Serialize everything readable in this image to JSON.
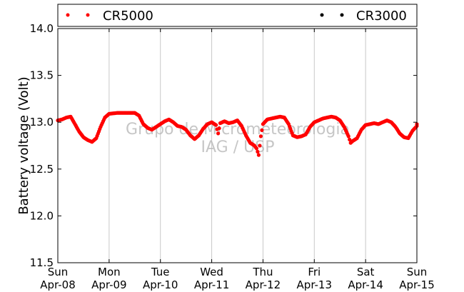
{
  "chart_data": {
    "type": "scatter",
    "ylabel": "Battery voltage (Volt)",
    "xlabel": "",
    "ylim": [
      11.5,
      14.0
    ],
    "xlim": [
      "2018-04-08",
      "2018-04-15"
    ],
    "yticks": [
      "11.5",
      "12.0",
      "12.5",
      "13.0",
      "13.5",
      "14.0"
    ],
    "xticks": [
      {
        "day": "Sun",
        "date": "Apr-08"
      },
      {
        "day": "Mon",
        "date": "Apr-09"
      },
      {
        "day": "Tue",
        "date": "Apr-10"
      },
      {
        "day": "Wed",
        "date": "Apr-11"
      },
      {
        "day": "Thu",
        "date": "Apr-12"
      },
      {
        "day": "Fri",
        "date": "Apr-13"
      },
      {
        "day": "Sat",
        "date": "Apr-14"
      },
      {
        "day": "Sun",
        "date": "Apr-15"
      }
    ],
    "grid": "vertical",
    "legend_position": "top",
    "series": [
      {
        "name": "CR5000",
        "color": "#ff0000",
        "points": [
          [
            "2018-04-08 00:00",
            13.02
          ],
          [
            "2018-04-08 02:00",
            13.03
          ],
          [
            "2018-04-08 04:00",
            13.05
          ],
          [
            "2018-04-08 06:00",
            13.06
          ],
          [
            "2018-04-08 08:00",
            12.98
          ],
          [
            "2018-04-08 10:00",
            12.9
          ],
          [
            "2018-04-08 12:00",
            12.84
          ],
          [
            "2018-04-08 14:00",
            12.81
          ],
          [
            "2018-04-08 16:00",
            12.79
          ],
          [
            "2018-04-08 18:00",
            12.83
          ],
          [
            "2018-04-08 20:00",
            12.95
          ],
          [
            "2018-04-08 22:00",
            13.05
          ],
          [
            "2018-04-09 00:00",
            13.09
          ],
          [
            "2018-04-09 04:00",
            13.1
          ],
          [
            "2018-04-09 08:00",
            13.1
          ],
          [
            "2018-04-09 12:00",
            13.1
          ],
          [
            "2018-04-09 14:00",
            13.07
          ],
          [
            "2018-04-09 16:00",
            12.98
          ],
          [
            "2018-04-09 18:00",
            12.94
          ],
          [
            "2018-04-09 20:00",
            12.92
          ],
          [
            "2018-04-09 22:00",
            12.95
          ],
          [
            "2018-04-10 00:00",
            12.98
          ],
          [
            "2018-04-10 02:00",
            13.01
          ],
          [
            "2018-04-10 04:00",
            13.03
          ],
          [
            "2018-04-10 06:00",
            13.0
          ],
          [
            "2018-04-10 08:00",
            12.96
          ],
          [
            "2018-04-10 10:00",
            12.95
          ],
          [
            "2018-04-10 12:00",
            12.92
          ],
          [
            "2018-04-10 14:00",
            12.86
          ],
          [
            "2018-04-10 16:00",
            12.82
          ],
          [
            "2018-04-10 18:00",
            12.86
          ],
          [
            "2018-04-10 20:00",
            12.93
          ],
          [
            "2018-04-10 22:00",
            12.98
          ],
          [
            "2018-04-11 00:00",
            13.0
          ],
          [
            "2018-04-11 02:00",
            12.97
          ],
          [
            "2018-04-11 03:00",
            12.88
          ],
          [
            "2018-04-11 04:00",
            12.99
          ],
          [
            "2018-04-11 06:00",
            13.01
          ],
          [
            "2018-04-11 08:00",
            12.99
          ],
          [
            "2018-04-11 10:00",
            13.0
          ],
          [
            "2018-04-11 12:00",
            13.02
          ],
          [
            "2018-04-11 14:00",
            12.96
          ],
          [
            "2018-04-11 16:00",
            12.86
          ],
          [
            "2018-04-11 18:00",
            12.78
          ],
          [
            "2018-04-11 20:00",
            12.75
          ],
          [
            "2018-04-11 21:00",
            12.72
          ],
          [
            "2018-04-11 22:00",
            12.65
          ],
          [
            "2018-04-11 23:00",
            12.85
          ],
          [
            "2018-04-12 00:00",
            12.98
          ],
          [
            "2018-04-12 02:00",
            13.03
          ],
          [
            "2018-04-12 04:00",
            13.04
          ],
          [
            "2018-04-12 06:00",
            13.05
          ],
          [
            "2018-04-12 08:00",
            13.06
          ],
          [
            "2018-04-12 10:00",
            13.05
          ],
          [
            "2018-04-12 12:00",
            12.98
          ],
          [
            "2018-04-12 14:00",
            12.86
          ],
          [
            "2018-04-12 16:00",
            12.84
          ],
          [
            "2018-04-12 18:00",
            12.85
          ],
          [
            "2018-04-12 20:00",
            12.87
          ],
          [
            "2018-04-12 22:00",
            12.95
          ],
          [
            "2018-04-13 00:00",
            13.0
          ],
          [
            "2018-04-13 02:00",
            13.02
          ],
          [
            "2018-04-13 04:00",
            13.04
          ],
          [
            "2018-04-13 06:00",
            13.05
          ],
          [
            "2018-04-13 08:00",
            13.06
          ],
          [
            "2018-04-13 10:00",
            13.05
          ],
          [
            "2018-04-13 12:00",
            13.02
          ],
          [
            "2018-04-13 14:00",
            12.95
          ],
          [
            "2018-04-13 16:00",
            12.85
          ],
          [
            "2018-04-13 17:00",
            12.78
          ],
          [
            "2018-04-13 18:00",
            12.8
          ],
          [
            "2018-04-13 20:00",
            12.83
          ],
          [
            "2018-04-13 22:00",
            12.92
          ],
          [
            "2018-04-14 00:00",
            12.97
          ],
          [
            "2018-04-14 02:00",
            12.98
          ],
          [
            "2018-04-14 04:00",
            12.99
          ],
          [
            "2018-04-14 06:00",
            12.98
          ],
          [
            "2018-04-14 08:00",
            13.0
          ],
          [
            "2018-04-14 10:00",
            13.02
          ],
          [
            "2018-04-14 12:00",
            13.0
          ],
          [
            "2018-04-14 14:00",
            12.95
          ],
          [
            "2018-04-14 16:00",
            12.88
          ],
          [
            "2018-04-14 18:00",
            12.84
          ],
          [
            "2018-04-14 20:00",
            12.83
          ],
          [
            "2018-04-14 22:00",
            12.91
          ],
          [
            "2018-04-15 00:00",
            12.96
          ],
          [
            "2018-04-15 00:00",
            12.98
          ]
        ]
      },
      {
        "name": "CR3000",
        "color": "#000000",
        "points": []
      }
    ],
    "watermark": [
      "Grupo de Micrometeorologia",
      "IAG / USP"
    ]
  }
}
